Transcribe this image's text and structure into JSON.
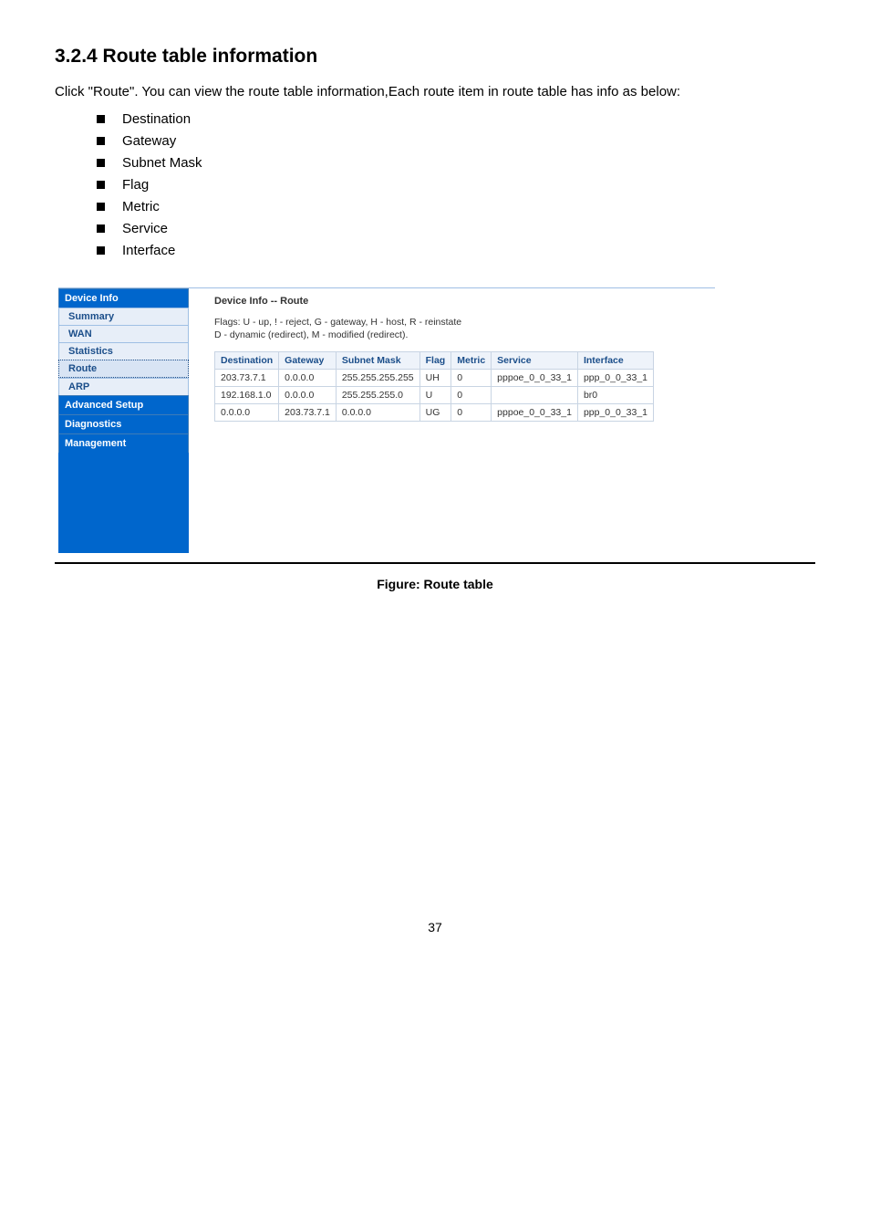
{
  "section": {
    "heading": "3.2.4 Route table information",
    "intro": "Click \"Route\". You can view the route table information,Each route item in route table has info as below:",
    "bullets": [
      "Destination",
      "Gateway",
      "Subnet Mask",
      "Flag",
      "Metric",
      "Service",
      "Interface"
    ]
  },
  "sidebar": {
    "heading_device_info": "Device Info",
    "items_sub": [
      "Summary",
      "WAN",
      "Statistics",
      "Route",
      "ARP"
    ],
    "active_index": 3,
    "heading_adv": "Advanced Setup",
    "heading_diag": "Diagnostics",
    "heading_mgmt": "Management"
  },
  "pane": {
    "title": "Device Info -- Route",
    "desc_line1": "Flags: U - up, ! - reject, G - gateway, H - host, R - reinstate",
    "desc_line2": "D - dynamic (redirect), M - modified (redirect)."
  },
  "table": {
    "headers": [
      "Destination",
      "Gateway",
      "Subnet Mask",
      "Flag",
      "Metric",
      "Service",
      "Interface"
    ],
    "rows": [
      [
        "203.73.7.1",
        "0.0.0.0",
        "255.255.255.255",
        "UH",
        "0",
        "pppoe_0_0_33_1",
        "ppp_0_0_33_1"
      ],
      [
        "192.168.1.0",
        "0.0.0.0",
        "255.255.255.0",
        "U",
        "0",
        "",
        "br0"
      ],
      [
        "0.0.0.0",
        "203.73.7.1",
        "0.0.0.0",
        "UG",
        "0",
        "pppoe_0_0_33_1",
        "ppp_0_0_33_1"
      ]
    ]
  },
  "caption": "Figure: Route table",
  "page_number": "37",
  "colors": {
    "sidebar_bg": "#0066cc",
    "sidebar_sub_bg": "#e7eef8",
    "sidebar_sub_text": "#1b4e8a",
    "table_border": "#c8d4e3",
    "table_header_bg": "#eef3fa"
  }
}
